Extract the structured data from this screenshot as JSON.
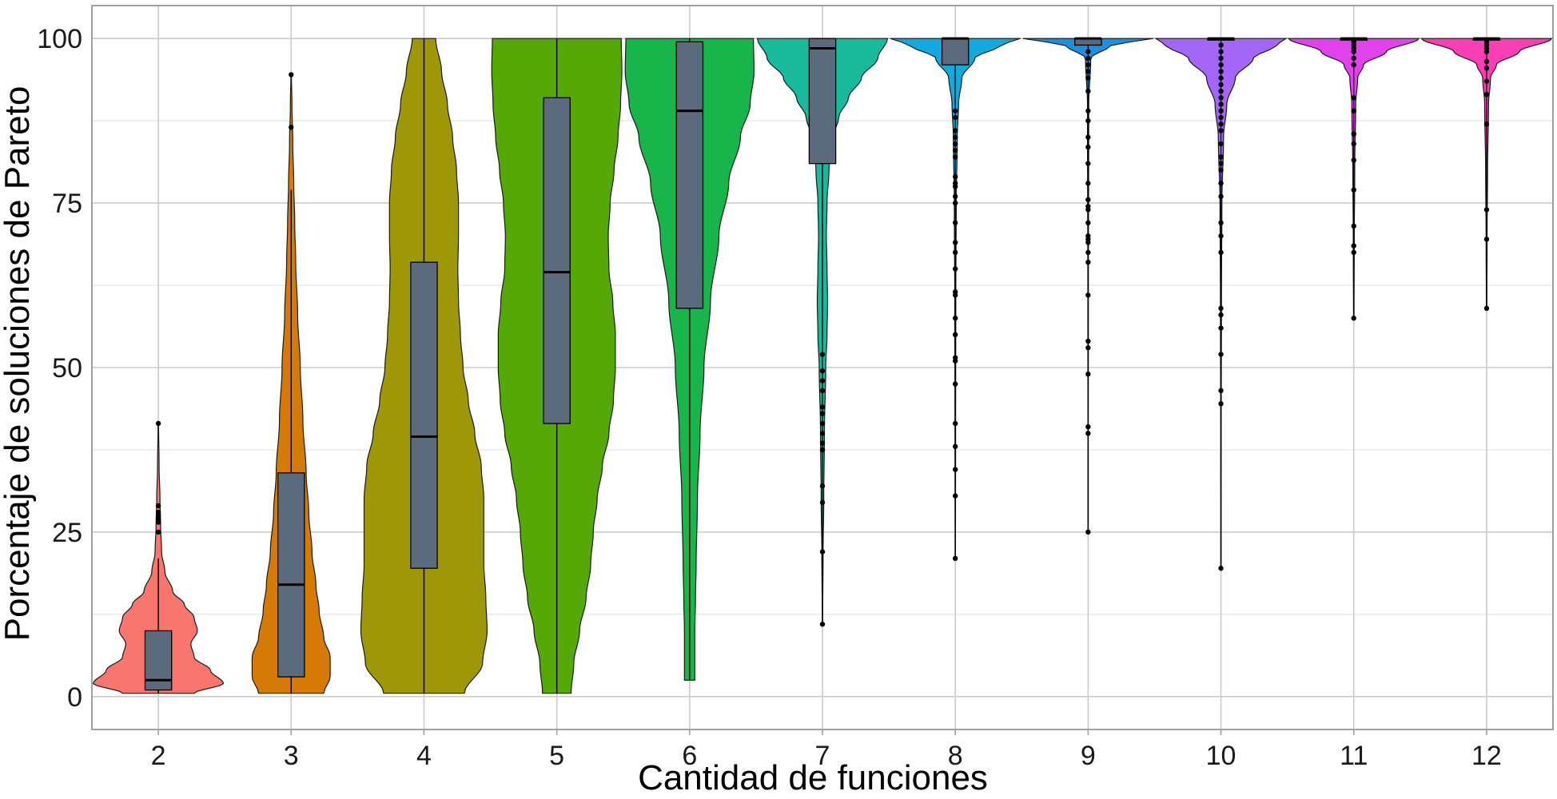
{
  "chart_data": {
    "type": "violin",
    "title": "",
    "xlabel": "Cantidad de funciones",
    "ylabel": "Porcentaje de soluciones de Pareto",
    "categories": [
      "2",
      "3",
      "4",
      "5",
      "6",
      "7",
      "8",
      "9",
      "10",
      "11",
      "12"
    ],
    "ylim": [
      -5,
      105
    ],
    "yticks": [
      0,
      25,
      50,
      75,
      100
    ],
    "grid": true,
    "legend": "none",
    "box_color": "#5b6b7d",
    "groups": [
      {
        "label": "2",
        "color": "#f8766d",
        "box": {
          "q1": 1,
          "median": 2.5,
          "q3": 10,
          "whisker_low": 0.5,
          "whisker_high": 21
        },
        "range": [
          0.5,
          41.5
        ],
        "density": [
          [
            0.5,
            0.55
          ],
          [
            2,
            1.0
          ],
          [
            4,
            0.8
          ],
          [
            6,
            0.55
          ],
          [
            8,
            0.5
          ],
          [
            10,
            0.6
          ],
          [
            12,
            0.55
          ],
          [
            14,
            0.4
          ],
          [
            16,
            0.22
          ],
          [
            19,
            0.1
          ],
          [
            22,
            0.05
          ],
          [
            26,
            0.035
          ],
          [
            30,
            0.025
          ],
          [
            35,
            0.012
          ],
          [
            41.5,
            0.004
          ]
        ],
        "outliers": [
          41.5,
          29,
          28,
          27.5,
          27,
          26.5,
          25
        ]
      },
      {
        "label": "3",
        "color": "#d57b05",
        "box": {
          "q1": 3,
          "median": 17,
          "q3": 34,
          "whisker_low": 0.5,
          "whisker_high": 77
        },
        "range": [
          0.5,
          94.5
        ],
        "density": [
          [
            0.5,
            0.5
          ],
          [
            3,
            0.6
          ],
          [
            6,
            0.6
          ],
          [
            9,
            0.5
          ],
          [
            13,
            0.43
          ],
          [
            17,
            0.38
          ],
          [
            22,
            0.32
          ],
          [
            28,
            0.27
          ],
          [
            34,
            0.23
          ],
          [
            42,
            0.18
          ],
          [
            50,
            0.14
          ],
          [
            58,
            0.1
          ],
          [
            66,
            0.07
          ],
          [
            72,
            0.055
          ],
          [
            78,
            0.04
          ],
          [
            84,
            0.025
          ],
          [
            90,
            0.012
          ],
          [
            94.5,
            0.004
          ]
        ],
        "outliers": [
          94.5,
          86.5
        ]
      },
      {
        "label": "4",
        "color": "#9e9708",
        "box": {
          "q1": 19.5,
          "median": 39.5,
          "q3": 66,
          "whisker_low": 0.5,
          "whisker_high": 100
        },
        "range": [
          0.5,
          100
        ],
        "density": [
          [
            0.5,
            0.62
          ],
          [
            5,
            0.9
          ],
          [
            10,
            0.97
          ],
          [
            15,
            0.95
          ],
          [
            20,
            0.92
          ],
          [
            25,
            0.92
          ],
          [
            30,
            0.92
          ],
          [
            35,
            0.88
          ],
          [
            40,
            0.78
          ],
          [
            45,
            0.68
          ],
          [
            50,
            0.6
          ],
          [
            55,
            0.56
          ],
          [
            60,
            0.53
          ],
          [
            65,
            0.52
          ],
          [
            70,
            0.53
          ],
          [
            75,
            0.53
          ],
          [
            80,
            0.5
          ],
          [
            85,
            0.44
          ],
          [
            90,
            0.36
          ],
          [
            95,
            0.27
          ],
          [
            100,
            0.18
          ]
        ],
        "outliers": []
      },
      {
        "label": "5",
        "color": "#55a806",
        "box": {
          "q1": 41.5,
          "median": 64.5,
          "q3": 91,
          "whisker_low": 0.5,
          "whisker_high": 100
        },
        "range": [
          0.5,
          100
        ],
        "density": [
          [
            0.5,
            0.22
          ],
          [
            5,
            0.26
          ],
          [
            10,
            0.35
          ],
          [
            15,
            0.45
          ],
          [
            20,
            0.52
          ],
          [
            25,
            0.56
          ],
          [
            30,
            0.62
          ],
          [
            35,
            0.7
          ],
          [
            40,
            0.8
          ],
          [
            45,
            0.87
          ],
          [
            50,
            0.9
          ],
          [
            55,
            0.9
          ],
          [
            60,
            0.86
          ],
          [
            65,
            0.8
          ],
          [
            70,
            0.79
          ],
          [
            75,
            0.82
          ],
          [
            80,
            0.88
          ],
          [
            85,
            0.94
          ],
          [
            90,
            0.98
          ],
          [
            95,
            1.0
          ],
          [
            100,
            0.99
          ]
        ],
        "outliers": []
      },
      {
        "label": "6",
        "color": "#18b54a",
        "box": {
          "q1": 59,
          "median": 89,
          "q3": 99.5,
          "whisker_low": 2.5,
          "whisker_high": 100
        },
        "range": [
          2.5,
          100
        ],
        "density": [
          [
            2.5,
            0.08
          ],
          [
            10,
            0.08
          ],
          [
            15,
            0.09
          ],
          [
            20,
            0.1
          ],
          [
            30,
            0.12
          ],
          [
            40,
            0.16
          ],
          [
            50,
            0.22
          ],
          [
            60,
            0.32
          ],
          [
            70,
            0.45
          ],
          [
            78,
            0.6
          ],
          [
            85,
            0.78
          ],
          [
            90,
            0.93
          ],
          [
            95,
            0.99
          ],
          [
            100,
            0.98
          ]
        ],
        "outliers": []
      },
      {
        "label": "7",
        "color": "#19b99b",
        "box": {
          "q1": 81,
          "median": 98.5,
          "q3": 100,
          "whisker_low": 55,
          "whisker_high": 100
        },
        "range": [
          11,
          100
        ],
        "density": [
          [
            11,
            0.003
          ],
          [
            22,
            0.01
          ],
          [
            30,
            0.02
          ],
          [
            40,
            0.03
          ],
          [
            50,
            0.05
          ],
          [
            55,
            0.07
          ],
          [
            60,
            0.08
          ],
          [
            65,
            0.07
          ],
          [
            70,
            0.06
          ],
          [
            75,
            0.07
          ],
          [
            80,
            0.1
          ],
          [
            85,
            0.16
          ],
          [
            88,
            0.25
          ],
          [
            91,
            0.4
          ],
          [
            94,
            0.6
          ],
          [
            97,
            0.85
          ],
          [
            100,
            1.0
          ]
        ],
        "outliers": [
          52,
          49.5,
          48,
          46.5,
          44,
          43,
          41.5,
          40,
          38.5,
          37.5,
          32,
          29.5,
          22,
          11
        ]
      },
      {
        "label": "8",
        "color": "#14a9dc",
        "box": {
          "q1": 96,
          "median": 100,
          "q3": 100,
          "whisker_low": 90,
          "whisker_high": 100
        },
        "range": [
          21,
          100
        ],
        "density": [
          [
            21,
            0.003
          ],
          [
            40,
            0.005
          ],
          [
            60,
            0.008
          ],
          [
            75,
            0.015
          ],
          [
            85,
            0.03
          ],
          [
            90,
            0.05
          ],
          [
            94,
            0.1
          ],
          [
            97,
            0.3
          ],
          [
            99,
            0.7
          ],
          [
            100,
            1.0
          ]
        ],
        "outliers": [
          89,
          88,
          86,
          85,
          84,
          83,
          82,
          79,
          78,
          77.5,
          76,
          75,
          72,
          69,
          67.5,
          65,
          61.5,
          61,
          57.5,
          55,
          51.5,
          51,
          47.5,
          41.5,
          38,
          34.5,
          30.5,
          21
        ]
      },
      {
        "label": "9",
        "color": "#1e8fe0",
        "box": {
          "q1": 99,
          "median": 100,
          "q3": 100,
          "whisker_low": 98,
          "whisker_high": 100
        },
        "range": [
          25,
          100
        ],
        "density": [
          [
            25,
            0.002
          ],
          [
            60,
            0.004
          ],
          [
            90,
            0.01
          ],
          [
            97,
            0.04
          ],
          [
            99,
            0.35
          ],
          [
            100,
            1.0
          ]
        ],
        "outliers": [
          98,
          97,
          96,
          95,
          94,
          92,
          89,
          87.5,
          85,
          83.5,
          81,
          78,
          75.5,
          74.5,
          74,
          72,
          70,
          69.5,
          69,
          67.5,
          66,
          61,
          54,
          53,
          49,
          41,
          40,
          25
        ]
      },
      {
        "label": "10",
        "color": "#a466f7",
        "box": {
          "q1": 100,
          "median": 100,
          "q3": 100,
          "whisker_low": 100,
          "whisker_high": 100
        },
        "range": [
          19.5,
          100
        ],
        "density": [
          [
            19.5,
            0.002
          ],
          [
            40,
            0.004
          ],
          [
            60,
            0.008
          ],
          [
            75,
            0.015
          ],
          [
            85,
            0.04
          ],
          [
            90,
            0.09
          ],
          [
            94,
            0.22
          ],
          [
            97,
            0.5
          ],
          [
            99,
            0.85
          ],
          [
            100,
            1.0
          ]
        ],
        "outliers": [
          99,
          98,
          97,
          96,
          95,
          94,
          93,
          92,
          91,
          90,
          89,
          88,
          87,
          86,
          84,
          82,
          81,
          80,
          78,
          76,
          72,
          70,
          67.5,
          59,
          58,
          56,
          52,
          46.5,
          44.5,
          19.5
        ]
      },
      {
        "label": "11",
        "color": "#e142ec",
        "box": {
          "q1": 100,
          "median": 100,
          "q3": 100,
          "whisker_low": 100,
          "whisker_high": 100
        },
        "range": [
          57.5,
          100
        ],
        "density": [
          [
            57.5,
            0.004
          ],
          [
            70,
            0.008
          ],
          [
            80,
            0.015
          ],
          [
            90,
            0.03
          ],
          [
            94,
            0.06
          ],
          [
            96,
            0.15
          ],
          [
            98,
            0.5
          ],
          [
            100,
            1.0
          ]
        ],
        "outliers": [
          99.5,
          99,
          98.5,
          98,
          97,
          96,
          91,
          89,
          85.5,
          84,
          81.5,
          77,
          71.5,
          68.5,
          67.5,
          57.5
        ]
      },
      {
        "label": "12",
        "color": "#fa3fb5",
        "box": {
          "q1": 100,
          "median": 100,
          "q3": 100,
          "whisker_low": 100,
          "whisker_high": 100
        },
        "range": [
          59,
          100
        ],
        "density": [
          [
            59,
            0.004
          ],
          [
            70,
            0.008
          ],
          [
            80,
            0.015
          ],
          [
            90,
            0.03
          ],
          [
            94,
            0.06
          ],
          [
            96,
            0.15
          ],
          [
            98,
            0.5
          ],
          [
            100,
            1.0
          ]
        ],
        "outliers": [
          99.5,
          99,
          98.5,
          98,
          96.5,
          95.5,
          93.5,
          91.5,
          87,
          74,
          69.5,
          59
        ]
      }
    ]
  }
}
